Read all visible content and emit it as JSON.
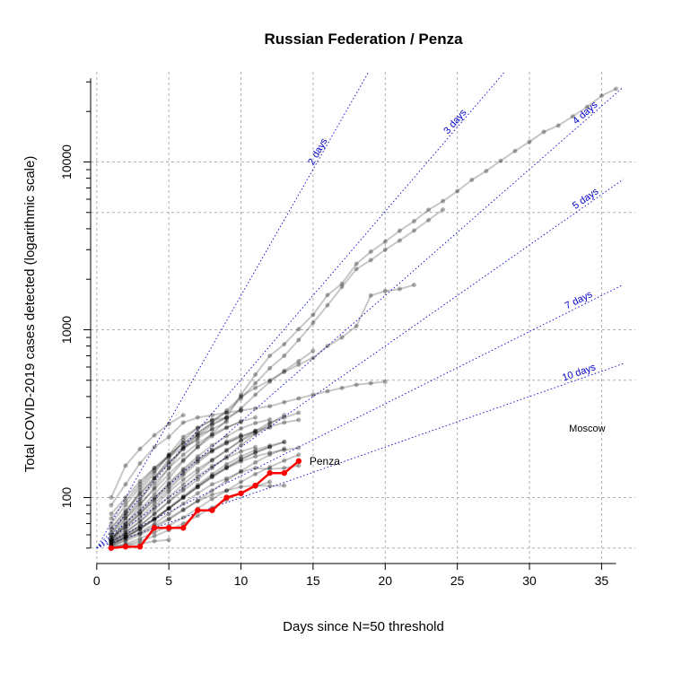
{
  "chart_data": {
    "type": "line",
    "title": "Russian Federation / Penza",
    "xlabel": "Days since N=50 threshold",
    "ylabel": "Total COVID-2019 cases detected (logarithmic scale)",
    "y_scale": "log",
    "xlim": [
      0,
      36
    ],
    "ylim": [
      50,
      30000
    ],
    "x_ticks": [
      0,
      5,
      10,
      15,
      20,
      25,
      30,
      35
    ],
    "y_ticks": [
      100,
      1000,
      10000
    ],
    "grid": true,
    "highlight_color": "#ff0000",
    "background_color": "#000000",
    "doubling_color": "#0000cc",
    "doubling_lines": [
      {
        "label": "2 days",
        "days": 2
      },
      {
        "label": "3 days",
        "days": 3
      },
      {
        "label": "4 days",
        "days": 4
      },
      {
        "label": "5 days",
        "days": 5
      },
      {
        "label": "7 days",
        "days": 7
      },
      {
        "label": "10 days",
        "days": 10
      }
    ],
    "series": [
      {
        "name": "Penza",
        "highlight": true,
        "x": [
          1,
          2,
          3,
          4,
          5,
          6,
          7,
          8,
          9,
          10,
          11,
          12,
          13,
          14
        ],
        "y": [
          50,
          51,
          51,
          66,
          66,
          66,
          84,
          84,
          100,
          106,
          118,
          140,
          140,
          165
        ]
      },
      {
        "name": "Moscow",
        "highlight": false,
        "x": [
          1,
          2,
          3,
          4,
          5,
          6,
          7,
          8,
          9,
          10,
          11,
          12,
          13,
          14,
          15,
          16,
          17,
          18,
          19,
          20,
          21,
          22,
          23,
          24,
          25,
          26,
          27,
          28,
          29,
          30,
          31,
          32,
          33,
          34,
          35,
          36
        ],
        "y": [
          55,
          75,
          95,
          130,
          170,
          220,
          260,
          290,
          300,
          410,
          540,
          700,
          820,
          1010,
          1230,
          1610,
          1880,
          2470,
          2920,
          3350,
          3890,
          4440,
          5180,
          5840,
          6700,
          7820,
          8830,
          10150,
          11630,
          13190,
          15120,
          16480,
          18680,
          21290,
          24800,
          27300
        ]
      },
      {
        "name": "",
        "highlight": false,
        "x": [
          1,
          2,
          3,
          4,
          5,
          6,
          7,
          8,
          9,
          10,
          11,
          12,
          13,
          14,
          15,
          16,
          17,
          18,
          19,
          20,
          21,
          22,
          23,
          24
        ],
        "y": [
          60,
          80,
          110,
          140,
          180,
          230,
          260,
          290,
          320,
          390,
          480,
          590,
          700,
          870,
          1100,
          1400,
          1800,
          2300,
          2600,
          3000,
          3400,
          3900,
          4500,
          5200
        ]
      },
      {
        "name": "",
        "highlight": false,
        "x": [
          1,
          2,
          3,
          4,
          5,
          6,
          7,
          8,
          9,
          10,
          11,
          12,
          13,
          14,
          15,
          16,
          17,
          18,
          19,
          20,
          21,
          22
        ],
        "y": [
          55,
          70,
          90,
          115,
          150,
          200,
          240,
          280,
          330,
          400,
          450,
          500,
          560,
          620,
          680,
          800,
          900,
          1050,
          1600,
          1700,
          1750,
          1850
        ]
      },
      {
        "name": "",
        "highlight": false,
        "x": [
          1,
          2,
          3,
          4,
          5,
          6,
          7,
          8,
          9,
          10,
          11,
          12,
          13,
          14,
          15,
          16,
          17,
          18,
          19,
          20
        ],
        "y": [
          90,
          120,
          160,
          200,
          230,
          280,
          300,
          310,
          320,
          330,
          340,
          350,
          370,
          390,
          410,
          430,
          450,
          470,
          480,
          490
        ]
      },
      {
        "name": "",
        "highlight": false,
        "x": [
          1,
          2,
          3,
          4,
          5,
          6,
          7,
          8,
          9,
          10,
          11,
          12,
          13,
          14,
          15
        ],
        "y": [
          58,
          70,
          85,
          105,
          130,
          165,
          200,
          240,
          290,
          340,
          410,
          490,
          570,
          650,
          750
        ]
      },
      {
        "name": "",
        "highlight": false,
        "x": [
          1,
          2,
          3,
          4,
          5,
          6
        ],
        "y": [
          100,
          155,
          195,
          235,
          275,
          310
        ]
      },
      {
        "name": "",
        "highlight": false,
        "x": [
          1,
          2,
          3,
          4,
          5,
          6,
          7,
          8,
          9,
          10,
          11,
          12,
          13,
          14
        ],
        "y": [
          55,
          62,
          72,
          88,
          108,
          128,
          148,
          168,
          190,
          220,
          250,
          280,
          300,
          320
        ]
      },
      {
        "name": "",
        "highlight": false,
        "x": [
          1,
          2,
          3,
          4,
          5,
          6,
          7,
          8,
          9,
          10,
          11,
          12,
          13
        ],
        "y": [
          54,
          60,
          68,
          80,
          94,
          110,
          128,
          150,
          175,
          205,
          240,
          275,
          310
        ]
      },
      {
        "name": "",
        "highlight": false,
        "x": [
          1,
          2,
          3,
          4,
          5,
          6,
          7,
          8,
          9,
          10,
          11,
          12,
          13,
          14
        ],
        "y": [
          56,
          66,
          80,
          98,
          120,
          145,
          170,
          190,
          210,
          230,
          250,
          265,
          280,
          290
        ]
      },
      {
        "name": "",
        "highlight": false,
        "x": [
          1,
          2,
          3,
          4,
          5,
          6,
          7,
          8,
          9,
          10,
          11,
          12,
          13
        ],
        "y": [
          52,
          58,
          65,
          75,
          86,
          100,
          115,
          132,
          150,
          168,
          185,
          200,
          215
        ]
      },
      {
        "name": "",
        "highlight": false,
        "x": [
          1,
          2,
          3,
          4,
          5,
          6,
          7,
          8,
          9,
          10,
          11,
          12,
          13,
          14
        ],
        "y": [
          51,
          56,
          62,
          70,
          80,
          92,
          106,
          120,
          130,
          142,
          150,
          148,
          150,
          155
        ]
      },
      {
        "name": "",
        "highlight": false,
        "x": [
          1,
          2,
          3,
          4,
          5,
          6,
          7,
          8,
          9,
          10,
          11,
          12,
          13
        ],
        "y": [
          53,
          57,
          61,
          68,
          75,
          85,
          95,
          104,
          110,
          116,
          118,
          117,
          118
        ]
      },
      {
        "name": "",
        "highlight": false,
        "x": [
          1,
          2,
          3,
          4,
          5,
          6,
          7,
          8,
          9,
          10,
          11
        ],
        "y": [
          60,
          75,
          92,
          112,
          138,
          168,
          200,
          232,
          260,
          285,
          300
        ]
      },
      {
        "name": "",
        "highlight": false,
        "x": [
          1,
          2,
          3,
          4,
          5,
          6,
          7,
          8,
          9,
          10,
          11,
          12
        ],
        "y": [
          57,
          68,
          82,
          100,
          122,
          148,
          176,
          205,
          232,
          258,
          278,
          292
        ]
      },
      {
        "name": "",
        "highlight": false,
        "x": [
          1,
          2,
          3,
          4,
          5,
          6,
          7,
          8,
          9,
          10
        ],
        "y": [
          65,
          82,
          104,
          130,
          160,
          196,
          234,
          270,
          300,
          330
        ]
      },
      {
        "name": "",
        "highlight": false,
        "x": [
          1,
          2,
          3,
          4,
          5,
          6,
          7,
          8,
          9,
          10,
          11,
          12
        ],
        "y": [
          54,
          62,
          72,
          85,
          101,
          120,
          142,
          166,
          192,
          218,
          242,
          262
        ]
      },
      {
        "name": "",
        "highlight": false,
        "x": [
          1,
          2,
          3,
          4,
          5,
          6,
          7,
          8,
          9,
          10,
          11,
          12,
          13
        ],
        "y": [
          52,
          55,
          60,
          66,
          74,
          84,
          96,
          110,
          126,
          144,
          162,
          180,
          196
        ]
      },
      {
        "name": "",
        "highlight": false,
        "x": [
          1,
          2,
          3,
          4,
          5,
          6,
          7,
          8,
          9
        ],
        "y": [
          70,
          90,
          115,
          145,
          178,
          212,
          245,
          275,
          300
        ]
      },
      {
        "name": "",
        "highlight": false,
        "x": [
          1,
          2,
          3,
          4,
          5,
          6,
          7,
          8,
          9,
          10,
          11
        ],
        "y": [
          56,
          64,
          76,
          92,
          112,
          136,
          162,
          188,
          212,
          232,
          248
        ]
      },
      {
        "name": "",
        "highlight": false,
        "x": [
          1,
          2,
          3,
          4,
          5,
          6,
          7,
          8,
          9,
          10,
          11,
          12
        ],
        "y": [
          53,
          58,
          65,
          74,
          86,
          100,
          116,
          134,
          152,
          170,
          186,
          200
        ]
      },
      {
        "name": "",
        "highlight": false,
        "x": [
          1,
          2,
          3,
          4,
          5,
          6,
          7,
          8,
          9,
          10
        ],
        "y": [
          62,
          78,
          98,
          122,
          150,
          180,
          210,
          238,
          262,
          282
        ]
      },
      {
        "name": "",
        "highlight": false,
        "x": [
          1,
          2,
          3,
          4,
          5,
          6,
          7,
          8,
          9,
          10,
          11
        ],
        "y": [
          55,
          60,
          68,
          80,
          95,
          114,
          134,
          154,
          172,
          188,
          200
        ]
      },
      {
        "name": "",
        "highlight": false,
        "x": [
          1,
          2,
          3,
          4,
          5,
          6,
          7,
          8,
          9,
          10,
          11,
          12,
          13,
          14
        ],
        "y": [
          51,
          53,
          57,
          62,
          68,
          76,
          86,
          98,
          110,
          124,
          138,
          152,
          166,
          180
        ]
      },
      {
        "name": "",
        "highlight": false,
        "x": [
          1,
          2,
          3,
          4,
          5,
          6,
          7,
          8,
          9,
          10,
          11,
          12,
          13,
          14
        ],
        "y": [
          52,
          58,
          65,
          74,
          86,
          100,
          116,
          134,
          150,
          164,
          176,
          185,
          192,
          198
        ]
      },
      {
        "name": "",
        "highlight": false,
        "x": [
          1,
          2,
          3,
          4,
          5,
          6,
          7,
          8
        ],
        "y": [
          75,
          95,
          120,
          150,
          180,
          210,
          235,
          255
        ]
      },
      {
        "name": "",
        "highlight": false,
        "x": [
          1,
          2,
          3,
          4,
          5,
          6,
          7,
          8,
          9,
          10
        ],
        "y": [
          58,
          67,
          80,
          96,
          116,
          140,
          166,
          192,
          216,
          236
        ]
      },
      {
        "name": "",
        "highlight": false,
        "x": [
          1,
          2,
          3,
          4,
          5,
          6,
          7,
          8,
          9,
          10,
          11,
          12,
          13
        ],
        "y": [
          54,
          59,
          66,
          75,
          87,
          102,
          119,
          138,
          158,
          176,
          192,
          204,
          214
        ]
      },
      {
        "name": "",
        "highlight": false,
        "x": [
          1,
          2,
          3,
          4,
          5,
          6,
          7,
          8,
          9
        ],
        "y": [
          66,
          84,
          106,
          132,
          162,
          194,
          226,
          256,
          282
        ]
      },
      {
        "name": "",
        "highlight": false,
        "x": [
          1,
          2,
          3,
          4,
          5,
          6,
          7,
          8,
          9,
          10,
          11,
          12
        ],
        "y": [
          50,
          52,
          55,
          59,
          64,
          70,
          78,
          87,
          97,
          107,
          116,
          124
        ]
      },
      {
        "name": "",
        "highlight": false,
        "x": [
          1,
          2,
          3,
          4,
          5,
          6,
          7
        ],
        "y": [
          80,
          100,
          125,
          150,
          175,
          200,
          220
        ]
      },
      {
        "name": "",
        "highlight": false,
        "x": [
          1,
          2,
          3,
          4,
          5
        ],
        "y": [
          51,
          52,
          53,
          55,
          56
        ]
      }
    ]
  }
}
